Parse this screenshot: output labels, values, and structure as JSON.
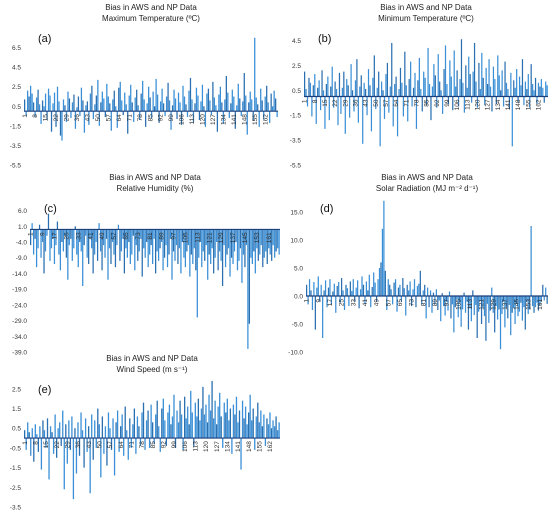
{
  "chart_data": [
    {
      "id": "a",
      "type": "bar",
      "panel_label": "(a)",
      "title": "Bias in AWS and NP Data",
      "subtitle": "Maximum Temperature (ºC)",
      "ylim": [
        -5.5,
        8.5
      ],
      "yticks": [
        6.5,
        4.5,
        2.5,
        0.5,
        -1.5,
        -3.5,
        -5.5
      ],
      "x_first": 1,
      "x_step": 1,
      "x_tick_labels": [
        "1",
        "8",
        "15",
        "22",
        "29",
        "36",
        "43",
        "50",
        "57",
        "64",
        "71",
        "78",
        "85",
        "92",
        "99",
        "106",
        "113",
        "120",
        "127",
        "134",
        "141",
        "148",
        "155",
        "162"
      ],
      "values": [
        1.2,
        -0.4,
        2.1,
        1.5,
        2.6,
        1.8,
        0.9,
        -0.6,
        1.4,
        2.2,
        0.7,
        -1.3,
        1.1,
        0.5,
        1.8,
        -0.9,
        2.3,
        1.6,
        -2.1,
        0.8,
        1.9,
        -1.6,
        2.5,
        1.0,
        -2.5,
        -3.0,
        1.2,
        0.6,
        -1.1,
        2.0,
        1.3,
        -0.7,
        0.9,
        1.7,
        -1.8,
        0.4,
        1.5,
        -0.5,
        2.4,
        1.1,
        -2.2,
        0.6,
        1.0,
        -1.4,
        1.8,
        2.6,
        -0.8,
        0.7,
        1.6,
        3.2,
        -1.5,
        0.9,
        2.0,
        1.3,
        -0.6,
        2.8,
        1.5,
        0.8,
        -2.0,
        1.2,
        2.1,
        0.5,
        -1.7,
        2.4,
        3.0,
        1.1,
        -0.4,
        1.9,
        0.7,
        -2.3,
        1.6,
        2.7,
        0.9,
        -1.1,
        1.4,
        2.2,
        0.6,
        -0.9,
        1.8,
        3.1,
        1.2,
        -1.6,
        0.8,
        2.5,
        1.4,
        -0.7,
        2.0,
        0.5,
        3.3,
        1.7,
        -1.2,
        1.0,
        2.3,
        0.8,
        -0.5,
        1.5,
        2.9,
        1.1,
        -1.9,
        0.6,
        2.2,
        1.3,
        -0.8,
        1.9,
        0.9,
        -1.4,
        2.6,
        1.5,
        0.7,
        -0.6,
        2.1,
        3.4,
        1.2,
        -1.1,
        0.8,
        2.4,
        1.6,
        -0.9,
        1.0,
        2.7,
        0.5,
        -1.6,
        1.8,
        2.3,
        1.1,
        -0.4,
        3.0,
        1.4,
        0.6,
        -2.1,
        1.7,
        2.5,
        0.9,
        -1.3,
        1.2,
        3.6,
        1.9,
        -0.7,
        0.8,
        2.2,
        1.5,
        -1.8,
        0.6,
        2.8,
        1.3,
        -0.5,
        1.0,
        3.9,
        1.6,
        -2.4,
        0.9,
        2.0,
        1.2,
        -1.0,
        7.5,
        1.4,
        0.7,
        -1.6,
        2.3,
        1.1,
        -0.8,
        1.5,
        2.6,
        0.9,
        -1.2,
        1.8,
        0.5,
        2.1,
        1.3,
        -0.6
      ]
    },
    {
      "id": "b",
      "type": "bar",
      "panel_label": "(b)",
      "title": "Bias in AWS and NP Data",
      "subtitle": "Minimum Temperature (ºC)",
      "ylim": [
        -5.5,
        5.5
      ],
      "yticks": [
        4.5,
        2.5,
        0.5,
        -1.5,
        -3.5,
        -5.5
      ],
      "x_first": 1,
      "x_step": 1,
      "x_tick_labels": [
        "1",
        "8",
        "15",
        "22",
        "29",
        "36",
        "43",
        "50",
        "57",
        "64",
        "71",
        "78",
        "85",
        "92",
        "99",
        "106",
        "113",
        "120",
        "127",
        "134",
        "141",
        "148",
        "155",
        "162"
      ],
      "values": [
        2.0,
        0.6,
        -0.8,
        1.5,
        1.1,
        -1.6,
        0.9,
        1.8,
        -2.2,
        0.7,
        1.3,
        -1.1,
        2.1,
        0.5,
        -2.6,
        1.0,
        1.6,
        -1.9,
        0.8,
        2.4,
        -0.9,
        1.2,
        0.6,
        -2.3,
        1.9,
        -1.4,
        0.7,
        2.0,
        -3.0,
        1.4,
        0.9,
        -1.7,
        2.6,
        0.5,
        -1.2,
        1.3,
        3.0,
        -2.1,
        0.8,
        1.7,
        -3.8,
        1.1,
        0.6,
        -1.5,
        2.2,
        0.9,
        -2.8,
        1.5,
        3.3,
        -1.0,
        0.7,
        2.0,
        -4.0,
        1.2,
        0.5,
        -1.8,
        1.8,
        2.7,
        -1.3,
        0.8,
        4.3,
        -2.4,
        1.0,
        1.6,
        -3.2,
        0.6,
        2.3,
        1.1,
        -1.6,
        3.6,
        0.9,
        -2.0,
        1.4,
        2.8,
        -0.8,
        0.7,
        1.9,
        -2.6,
        1.3,
        3.1,
        0.6,
        -1.2,
        2.0,
        1.5,
        -0.7,
        3.9,
        1.0,
        -1.9,
        0.8,
        2.6,
        1.7,
        -0.9,
        3.4,
        1.2,
        0.5,
        -1.4,
        2.2,
        4.1,
        1.0,
        -0.6,
        2.9,
        1.6,
        -1.1,
        3.7,
        0.8,
        2.1,
        -0.8,
        1.4,
        4.6,
        1.1,
        -1.3,
        2.5,
        0.7,
        3.2,
        1.8,
        -0.5,
        2.0,
        4.3,
        1.2,
        -0.9,
        2.7,
        0.6,
        3.5,
        1.5,
        -0.7,
        2.3,
        1.0,
        3.0,
        0.8,
        -1.2,
        2.4,
        1.4,
        -0.6,
        3.3,
        1.7,
        0.5,
        2.1,
        -0.8,
        2.8,
        1.1,
        0.6,
        -1.0,
        1.9,
        -4.0,
        1.3,
        0.7,
        2.2,
        -0.5,
        1.6,
        0.9,
        3.0,
        -0.7,
        1.2,
        0.6,
        1.8,
        -0.9,
        2.6,
        1.0,
        0.5,
        1.5,
        -0.6,
        1.1,
        0.8,
        1.4,
        0.7,
        -0.5,
        1.2,
        0.9
      ]
    },
    {
      "id": "c",
      "type": "bar",
      "panel_label": "(c)",
      "title": "Bias in AWS and NP Data",
      "subtitle": "Relative Humidity (%)",
      "ylim": [
        -39.0,
        10.0
      ],
      "yticks": [
        6.0,
        1.0,
        -4.0,
        -9.0,
        -14.0,
        -19.0,
        -24.0,
        -29.0,
        -34.0,
        -39.0
      ],
      "x_first": 1,
      "x_step": 1,
      "x_tick_labels": [
        "1",
        "9",
        "17",
        "25",
        "33",
        "41",
        "49",
        "57",
        "65",
        "73",
        "81",
        "89",
        "97",
        "105",
        "113",
        "121",
        "129",
        "137",
        "145",
        "153",
        "161"
      ],
      "values": [
        -5.0,
        2.0,
        -8.0,
        -3.0,
        -12.0,
        -6.0,
        1.5,
        -9.0,
        -4.0,
        -14.0,
        -7.0,
        -2.0,
        5.0,
        -10.0,
        -6.0,
        -3.0,
        -11.0,
        -5.0,
        2.5,
        -8.0,
        -13.0,
        -4.0,
        -7.0,
        -2.0,
        -9.0,
        -16.0,
        -5.0,
        -3.0,
        -10.0,
        -6.0,
        1.0,
        -8.0,
        -12.0,
        -4.0,
        -7.0,
        -18.0,
        -5.0,
        -2.0,
        -9.0,
        -11.0,
        -3.0,
        -6.0,
        -14.0,
        -8.0,
        -4.0,
        -10.0,
        2.0,
        -7.0,
        -13.0,
        -5.0,
        -9.0,
        -3.0,
        -16.0,
        -6.0,
        -11.0,
        -4.0,
        -8.0,
        -12.0,
        -5.0,
        1.5,
        -10.0,
        -7.0,
        -3.0,
        -14.0,
        -6.0,
        -9.0,
        -4.0,
        -11.0,
        -8.0,
        -2.0,
        -13.0,
        -5.0,
        -10.0,
        -7.0,
        -3.0,
        -15.0,
        -6.0,
        -9.0,
        -4.0,
        -12.0,
        -8.0,
        -5.0,
        -11.0,
        -3.0,
        -14.0,
        -7.0,
        -10.0,
        -6.0,
        -4.0,
        -13.0,
        -9.0,
        -5.0,
        -12.0,
        -8.0,
        -3.0,
        -16.0,
        -7.0,
        -10.0,
        -5.0,
        -11.0,
        -6.0,
        -14.0,
        -4.0,
        -9.0,
        -12.0,
        -7.0,
        -5.0,
        -15.0,
        -8.0,
        -11.0,
        -6.0,
        -13.0,
        -28.0,
        -9.0,
        -4.0,
        -12.0,
        -7.0,
        -10.0,
        -5.0,
        -16.0,
        -8.0,
        -11.0,
        -6.0,
        -14.0,
        -9.0,
        -4.0,
        -13.0,
        -7.0,
        -10.0,
        -18.0,
        -5.0,
        -12.0,
        -8.0,
        -6.0,
        -15.0,
        -9.0,
        -11.0,
        -7.0,
        -4.0,
        -13.0,
        -10.0,
        -6.0,
        -17.0,
        -8.0,
        -12.0,
        -5.0,
        -38.0,
        -30.0,
        -9.0,
        -11.0,
        -7.0,
        -14.0,
        -6.0,
        -10.0,
        -8.0,
        -5.0,
        -12.0,
        -9.0,
        -7.0,
        -11.0,
        -6.0,
        -8.0,
        -10.0,
        -5.0,
        -9.0,
        -7.0,
        -6.0,
        -8.0
      ]
    },
    {
      "id": "d",
      "type": "bar",
      "panel_label": "(d)",
      "title": "Bias in AWS and NP Data",
      "subtitle": "Solar Radiation (MJ m⁻² d⁻¹)",
      "ylim": [
        -10.0,
        17.5
      ],
      "yticks": [
        15.0,
        10.0,
        5.0,
        0.0,
        -5.0,
        -10.0
      ],
      "x_first": 1,
      "x_step": 1,
      "x_tick_labels": [
        "1",
        "9",
        "17",
        "25",
        "33",
        "41",
        "49",
        "57",
        "65",
        "73",
        "81",
        "89",
        "97",
        "105",
        "113",
        "121",
        "129",
        "137",
        "145",
        "153",
        "161"
      ],
      "values": [
        2.0,
        -1.5,
        3.0,
        1.0,
        -2.5,
        2.5,
        -6.0,
        1.5,
        3.5,
        -1.0,
        2.0,
        -7.5,
        1.0,
        2.8,
        -2.0,
        1.5,
        3.0,
        -1.5,
        0.8,
        2.2,
        -3.0,
        1.8,
        2.5,
        -1.2,
        3.2,
        1.0,
        -2.5,
        2.0,
        1.4,
        -1.8,
        2.6,
        0.9,
        3.0,
        -1.0,
        1.5,
        2.8,
        -2.2,
        1.2,
        3.5,
        2.0,
        -1.4,
        2.6,
        1.0,
        3.8,
        -2.0,
        1.6,
        4.2,
        2.4,
        -1.0,
        3.0,
        5.0,
        6.0,
        12.0,
        17.0,
        4.5,
        -2.5,
        3.0,
        2.0,
        1.2,
        -1.5,
        2.4,
        3.0,
        -2.8,
        1.5,
        2.0,
        -1.0,
        3.2,
        1.4,
        -3.5,
        2.0,
        1.0,
        2.6,
        -1.8,
        1.2,
        3.0,
        -2.0,
        1.8,
        2.2,
        4.5,
        -1.5,
        1.0,
        2.0,
        -4.0,
        1.5,
        -2.0,
        1.0,
        -3.0,
        0.6,
        -1.5,
        1.2,
        -2.5,
        -0.8,
        -4.5,
        0.5,
        -1.8,
        -3.5,
        -1.0,
        -2.6,
        0.8,
        -4.0,
        -1.5,
        -6.5,
        -2.0,
        -0.6,
        -3.8,
        -1.2,
        -5.5,
        -2.4,
        0.6,
        -3.0,
        -1.0,
        -6.0,
        -2.2,
        -4.5,
        1.0,
        -3.4,
        -1.6,
        -7.5,
        -2.8,
        -0.8,
        -5.0,
        -2.0,
        -3.6,
        -8.0,
        -1.4,
        -4.8,
        -2.6,
        1.5,
        -3.0,
        -6.5,
        -1.8,
        -4.2,
        -2.4,
        -9.5,
        -3.2,
        -1.0,
        -5.6,
        -2.0,
        -4.0,
        -1.6,
        -7.0,
        -3.0,
        -2.2,
        -5.0,
        -1.4,
        -3.6,
        -2.8,
        -1.2,
        -4.4,
        -2.0,
        -6.0,
        -1.0,
        -3.2,
        -2.4,
        12.5,
        -1.8,
        -3.0,
        -2.0,
        -1.2,
        -2.6,
        -1.6,
        -1.0,
        2.0,
        -0.8,
        1.5,
        -1.4
      ]
    },
    {
      "id": "e",
      "type": "bar",
      "panel_label": "(e)",
      "title": "Bias in AWS and NP Data",
      "subtitle": "Wind Speed (m s⁻¹)",
      "ylim": [
        -3.5,
        3.0
      ],
      "yticks": [
        2.5,
        1.5,
        0.5,
        -0.5,
        -1.5,
        -2.5,
        -3.5
      ],
      "x_first": 1,
      "x_step": 1,
      "x_tick_labels": [
        "1",
        "8",
        "15",
        "22",
        "29",
        "36",
        "43",
        "50",
        "57",
        "64",
        "71",
        "78",
        "85",
        "92",
        "99",
        "106",
        "113",
        "120",
        "127",
        "134",
        "141",
        "148",
        "155",
        "162"
      ],
      "values": [
        0.4,
        -0.6,
        0.8,
        0.3,
        -0.9,
        0.5,
        -1.2,
        0.7,
        0.2,
        -0.7,
        0.6,
        -1.6,
        0.9,
        0.4,
        -0.5,
        1.0,
        -2.1,
        0.6,
        0.3,
        -0.8,
        1.2,
        -1.0,
        0.5,
        0.8,
        -0.4,
        1.4,
        -2.6,
        0.7,
        -1.3,
        0.9,
        -0.6,
        1.1,
        -3.1,
        0.5,
        -1.8,
        0.8,
        -0.9,
        1.3,
        0.4,
        -1.5,
        1.0,
        -0.7,
        0.6,
        -2.8,
        1.2,
        -1.1,
        0.9,
        -0.5,
        1.5,
        0.7,
        -2.0,
        1.1,
        -0.8,
        0.6,
        -1.4,
        1.3,
        0.5,
        -0.6,
        1.0,
        -1.9,
        0.8,
        1.4,
        -0.7,
        0.6,
        1.2,
        -0.9,
        1.6,
        0.4,
        -1.1,
        1.0,
        -0.5,
        0.7,
        1.5,
        -0.8,
        1.1,
        0.6,
        -0.4,
        1.3,
        1.8,
        -0.6,
        0.9,
        1.4,
        -0.5,
        1.7,
        0.8,
        -0.3,
        1.2,
        1.9,
        0.6,
        -0.7,
        1.5,
        2.0,
        0.9,
        -0.4,
        1.3,
        1.7,
        0.7,
        1.1,
        2.2,
        -0.5,
        1.4,
        0.8,
        1.9,
        1.2,
        -0.6,
        2.1,
        1.0,
        1.6,
        0.7,
        2.4,
        1.3,
        -0.4,
        1.8,
        1.1,
        2.0,
        0.9,
        1.5,
        2.6,
        1.2,
        1.7,
        0.8,
        2.2,
        1.4,
        2.9,
        1.0,
        1.9,
        0.7,
        1.6,
        2.3,
        1.1,
        -0.5,
        1.8,
        1.3,
        2.0,
        0.9,
        1.5,
        -0.8,
        1.7,
        1.2,
        2.1,
        0.8,
        1.4,
        -1.6,
        1.9,
        1.0,
        1.6,
        0.7,
        1.3,
        2.2,
        0.9,
        1.5,
        -0.6,
        1.1,
        1.8,
        0.8,
        1.4,
        0.6,
        1.2,
        -0.4,
        1.0,
        0.7,
        1.3,
        0.5,
        0.9,
        0.6,
        1.1,
        0.4,
        0.8
      ]
    }
  ],
  "colors": {
    "bar": "#3a8fd6",
    "bar_dark": "#2a6fb0",
    "zero_line": "#1c3f7a",
    "highlight": "#8fe0e0"
  }
}
